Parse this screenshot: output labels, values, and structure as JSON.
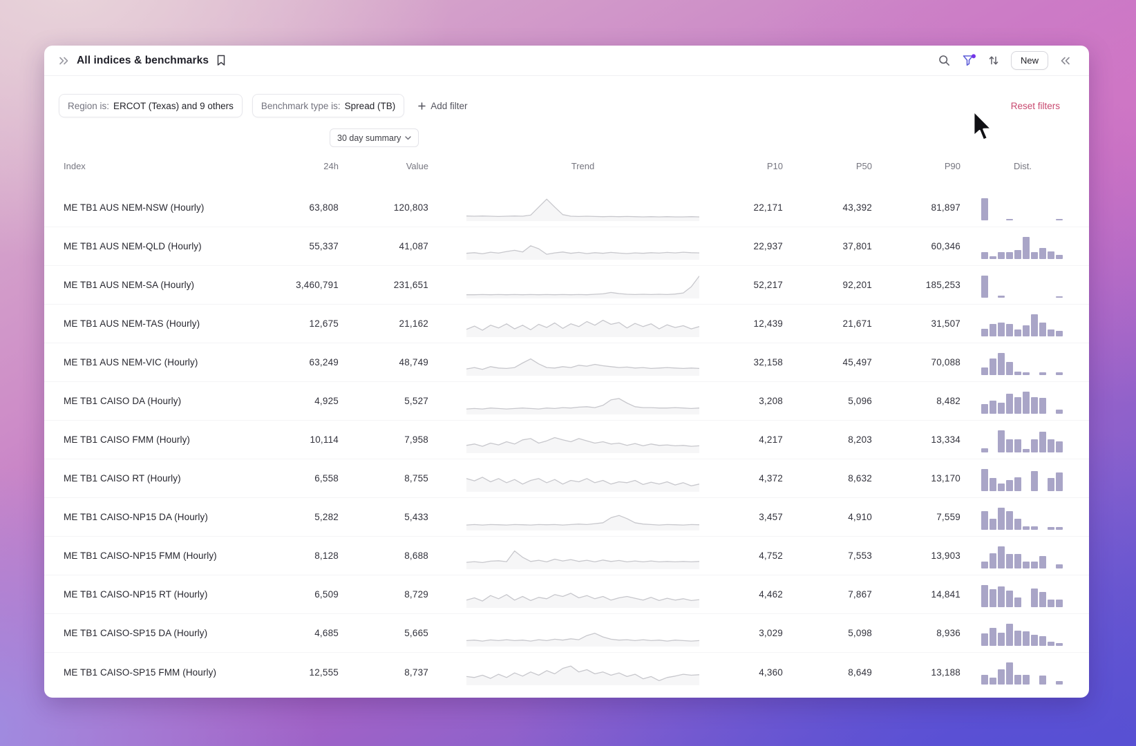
{
  "header": {
    "title": "All indices & benchmarks",
    "new_label": "New"
  },
  "filters": {
    "chips": [
      {
        "label": "Region is:",
        "value": "ERCOT (Texas) and 9 others"
      },
      {
        "label": "Benchmark type is:",
        "value": "Spread (TB)"
      }
    ],
    "add_filter_label": "Add filter",
    "reset_label": "Reset filters"
  },
  "summary_selector": {
    "label": "30 day summary"
  },
  "icons": {
    "expand": "chevrons-right",
    "bookmark": "bookmark-outline",
    "search": "magnifier",
    "filter": "funnel-with-purple-badge",
    "sort": "arrows-up-down",
    "collapse": "chevrons-left",
    "add": "plus",
    "dropdown": "chevron-down",
    "cursor": "arrow-pointer"
  },
  "colors": {
    "hist": "#a9a5c7",
    "spark": "#c7c7cc",
    "pink": "#c8496f",
    "accent": "#5b5bd6"
  },
  "table": {
    "columns": [
      "Index",
      "24h",
      "Value",
      "Trend",
      "P10",
      "P50",
      "P90",
      "Dist."
    ],
    "rows": [
      {
        "index": "ME TB1 AUS NEM-NSW (Hourly)",
        "h24": "63,808",
        "value": "120,803",
        "p10": "22,171",
        "p50": "43,392",
        "p90": "81,897",
        "trend": [
          16,
          15,
          16,
          15,
          14,
          15,
          16,
          15,
          20,
          55,
          90,
          55,
          22,
          15,
          14,
          15,
          14,
          13,
          14,
          13,
          14,
          13,
          12,
          13,
          12,
          13,
          12,
          12,
          13,
          12
        ],
        "dist": [
          1,
          0,
          0,
          0.07,
          0,
          0,
          0,
          0,
          0,
          0.07
        ]
      },
      {
        "index": "ME TB1 AUS NEM-QLD (Hourly)",
        "h24": "55,337",
        "value": "41,087",
        "p10": "22,937",
        "p50": "37,801",
        "p90": "60,346",
        "trend": [
          22,
          25,
          20,
          27,
          23,
          30,
          35,
          28,
          55,
          42,
          18,
          24,
          28,
          22,
          26,
          21,
          25,
          22,
          26,
          23,
          21,
          24,
          22,
          25,
          23,
          26,
          24,
          27,
          25,
          24
        ],
        "dist": [
          0.3,
          0.12,
          0.32,
          0.3,
          0.42,
          1,
          0.32,
          0.5,
          0.35,
          0.2
        ]
      },
      {
        "index": "ME TB1 AUS NEM-SA (Hourly)",
        "h24": "3,460,791",
        "value": "231,651",
        "p10": "52,217",
        "p50": "92,201",
        "p90": "185,253",
        "trend": [
          10,
          10,
          11,
          10,
          11,
          10,
          11,
          10,
          11,
          10,
          11,
          10,
          11,
          10,
          11,
          10,
          12,
          14,
          20,
          15,
          12,
          11,
          12,
          11,
          12,
          11,
          13,
          18,
          45,
          92
        ],
        "dist": [
          1,
          0,
          0.08,
          0,
          0,
          0,
          0,
          0,
          0,
          0.06
        ]
      },
      {
        "index": "ME TB1 AUS NEM-TAS (Hourly)",
        "h24": "12,675",
        "value": "21,162",
        "p10": "12,439",
        "p50": "21,671",
        "p90": "31,507",
        "trend": [
          28,
          42,
          24,
          46,
          34,
          52,
          30,
          46,
          26,
          50,
          36,
          56,
          32,
          52,
          40,
          62,
          46,
          68,
          50,
          58,
          34,
          54,
          40,
          52,
          30,
          48,
          36,
          44,
          30,
          40
        ],
        "dist": [
          0.35,
          0.55,
          0.62,
          0.55,
          0.3,
          0.5,
          1,
          0.62,
          0.3,
          0.25
        ]
      },
      {
        "index": "ME TB1 AUS NEM-VIC (Hourly)",
        "h24": "63,249",
        "value": "48,749",
        "p10": "32,158",
        "p50": "45,497",
        "p90": "70,088",
        "trend": [
          24,
          30,
          22,
          34,
          28,
          26,
          30,
          50,
          68,
          46,
          30,
          28,
          34,
          30,
          40,
          36,
          44,
          38,
          34,
          30,
          32,
          28,
          30,
          26,
          28,
          30,
          28,
          26,
          28,
          26
        ],
        "dist": [
          0.35,
          0.75,
          1,
          0.6,
          0.15,
          0.12,
          0,
          0.12,
          0,
          0.12
        ]
      },
      {
        "index": "ME TB1 CAISO DA (Hourly)",
        "h24": "4,925",
        "value": "5,527",
        "p10": "3,208",
        "p50": "5,096",
        "p90": "8,482",
        "trend": [
          18,
          20,
          18,
          22,
          20,
          18,
          20,
          22,
          20,
          18,
          22,
          20,
          24,
          22,
          26,
          28,
          24,
          34,
          58,
          64,
          44,
          28,
          24,
          24,
          22,
          22,
          24,
          22,
          20,
          22
        ],
        "dist": [
          0.45,
          0.6,
          0.5,
          0.9,
          0.75,
          1,
          0.75,
          0.72,
          0,
          0.2
        ]
      },
      {
        "index": "ME TB1 CAISO FMM (Hourly)",
        "h24": "10,114",
        "value": "7,958",
        "p10": "4,217",
        "p50": "8,203",
        "p90": "13,334",
        "trend": [
          28,
          34,
          24,
          38,
          30,
          44,
          34,
          52,
          58,
          38,
          48,
          62,
          52,
          44,
          58,
          48,
          38,
          44,
          34,
          38,
          28,
          36,
          26,
          34,
          28,
          30,
          26,
          28,
          24,
          26
        ],
        "dist": [
          0.2,
          0,
          1,
          0.6,
          0.58,
          0.15,
          0.58,
          0.95,
          0.6,
          0.5
        ]
      },
      {
        "index": "ME TB1 CAISO RT (Hourly)",
        "h24": "6,558",
        "value": "8,755",
        "p10": "4,372",
        "p50": "8,632",
        "p90": "13,170",
        "trend": [
          52,
          42,
          58,
          38,
          52,
          34,
          48,
          28,
          44,
          52,
          34,
          48,
          28,
          44,
          38,
          52,
          34,
          44,
          28,
          38,
          34,
          44,
          26,
          36,
          28,
          38,
          24,
          34,
          20,
          28
        ],
        "dist": [
          1,
          0.6,
          0.35,
          0.5,
          0.62,
          0,
          0.9,
          0,
          0.6,
          0.85
        ]
      },
      {
        "index": "ME TB1 CAISO-NP15 DA (Hourly)",
        "h24": "5,282",
        "value": "5,433",
        "p10": "3,457",
        "p50": "4,910",
        "p90": "7,559",
        "trend": [
          18,
          20,
          18,
          20,
          19,
          18,
          20,
          19,
          18,
          20,
          19,
          20,
          18,
          20,
          22,
          20,
          24,
          28,
          50,
          60,
          46,
          28,
          22,
          20,
          18,
          20,
          19,
          18,
          20,
          19
        ],
        "dist": [
          0.85,
          0.5,
          1,
          0.85,
          0.5,
          0.15,
          0.15,
          0,
          0.12,
          0.12
        ]
      },
      {
        "index": "ME TB1 CAISO-NP15 FMM (Hourly)",
        "h24": "8,128",
        "value": "8,688",
        "p10": "4,752",
        "p50": "7,553",
        "p90": "13,903",
        "trend": [
          24,
          27,
          23,
          29,
          31,
          27,
          74,
          46,
          28,
          33,
          26,
          38,
          30,
          36,
          28,
          33,
          26,
          34,
          28,
          32,
          26,
          30,
          26,
          30,
          26,
          28,
          26,
          28,
          26,
          28
        ],
        "dist": [
          0.3,
          0.7,
          1,
          0.65,
          0.65,
          0.3,
          0.3,
          0.55,
          0,
          0.2
        ]
      },
      {
        "index": "ME TB1 CAISO-NP15 RT (Hourly)",
        "h24": "6,509",
        "value": "8,729",
        "p10": "4,462",
        "p50": "7,867",
        "p90": "14,841",
        "trend": [
          28,
          38,
          24,
          48,
          34,
          52,
          28,
          44,
          26,
          40,
          34,
          52,
          44,
          58,
          38,
          48,
          34,
          44,
          28,
          38,
          44,
          36,
          28,
          40,
          26,
          36,
          28,
          34,
          26,
          30
        ],
        "dist": [
          1,
          0.8,
          0.95,
          0.75,
          0.45,
          0,
          0.85,
          0.7,
          0.35,
          0.35
        ]
      },
      {
        "index": "ME TB1 CAISO-SP15 DA (Hourly)",
        "h24": "4,685",
        "value": "5,665",
        "p10": "3,029",
        "p50": "5,098",
        "p90": "8,936",
        "trend": [
          20,
          22,
          18,
          23,
          20,
          24,
          20,
          22,
          18,
          24,
          20,
          26,
          22,
          28,
          24,
          42,
          52,
          36,
          26,
          22,
          24,
          20,
          24,
          20,
          22,
          18,
          22,
          20,
          18,
          20
        ],
        "dist": [
          0.55,
          0.8,
          0.6,
          1,
          0.7,
          0.65,
          0.5,
          0.45,
          0.18,
          0.12
        ]
      },
      {
        "index": "ME TB1 CAISO-SP15 FMM (Hourly)",
        "h24": "12,555",
        "value": "8,737",
        "p10": "4,360",
        "p50": "8,649",
        "p90": "13,188",
        "trend": [
          32,
          28,
          38,
          24,
          42,
          28,
          48,
          34,
          52,
          38,
          58,
          44,
          68,
          78,
          52,
          62,
          44,
          52,
          38,
          48,
          32,
          42,
          22,
          32,
          14,
          28,
          34,
          42,
          38,
          40
        ],
        "dist": [
          0.45,
          0.3,
          0.7,
          1,
          0.45,
          0.45,
          0,
          0.4,
          0,
          0.15
        ]
      }
    ]
  }
}
